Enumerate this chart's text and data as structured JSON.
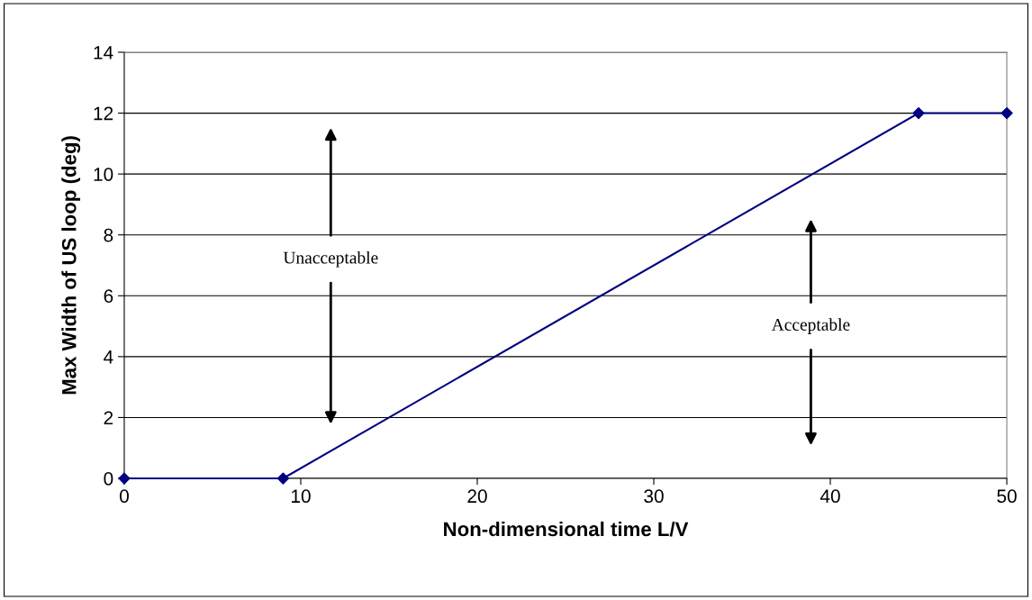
{
  "chart_data": {
    "type": "line",
    "xlabel": "Non-dimensional time L/V",
    "ylabel": "Max Width of US loop (deg)",
    "x": [
      0,
      9,
      45,
      50
    ],
    "series": [
      {
        "color": "#000080",
        "values": [
          0,
          0,
          12,
          12
        ]
      }
    ],
    "xlim": [
      0,
      50
    ],
    "xticks": [
      0,
      10,
      20,
      30,
      40,
      50
    ],
    "ylim": [
      0,
      14
    ],
    "yticks": [
      0,
      2,
      4,
      6,
      8,
      10,
      12,
      14
    ],
    "grid": "y",
    "marker": "diamond",
    "line_style": "solid",
    "annotations": [
      "Unacceptable",
      "Acceptable"
    ]
  }
}
